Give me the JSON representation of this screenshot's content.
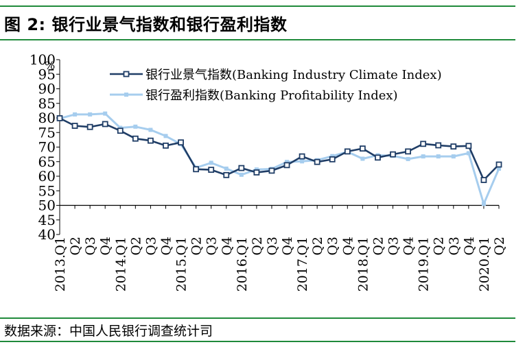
{
  "header": {
    "title": "图 2:  银行业景气指数和银行盈利指数"
  },
  "footer": {
    "source": "数据来源：中国人民银行调查统计司"
  },
  "chart_data": {
    "type": "line",
    "unit_label": "%",
    "ylim": [
      40,
      100
    ],
    "yticks": [
      40,
      45,
      50,
      55,
      60,
      65,
      70,
      75,
      80,
      85,
      90,
      95,
      100
    ],
    "grid": false,
    "legend_position": "top",
    "x_quarter_labels": [
      "Q1",
      "Q2",
      "Q3",
      "Q4",
      "Q1",
      "Q2",
      "Q3",
      "Q4",
      "Q1",
      "Q2",
      "Q3",
      "Q4",
      "Q1",
      "Q2",
      "Q3",
      "Q4",
      "Q1",
      "Q2",
      "Q3",
      "Q4",
      "Q1",
      "Q2",
      "Q3",
      "Q4",
      "Q1",
      "Q2",
      "Q3",
      "Q4",
      "Q1",
      "Q2"
    ],
    "year_labels": [
      {
        "year": "2013.",
        "index": 0
      },
      {
        "year": "2014.",
        "index": 4
      },
      {
        "year": "2015.",
        "index": 8
      },
      {
        "year": "2016.",
        "index": 12
      },
      {
        "year": "2017.",
        "index": 16
      },
      {
        "year": "2018.",
        "index": 20
      },
      {
        "year": "2019.",
        "index": 24
      },
      {
        "year": "2020.",
        "index": 28
      }
    ],
    "series": [
      {
        "name": "银行业景气指数(Banking Industry Climate Index)",
        "color": "#1f3d66",
        "values": [
          79.9,
          77.3,
          76.9,
          77.9,
          75.6,
          72.9,
          72.2,
          70.5,
          71.6,
          62.4,
          62.2,
          60.4,
          62.8,
          61.3,
          61.9,
          63.8,
          66.8,
          64.9,
          65.8,
          68.5,
          69.5,
          66.4,
          67.5,
          68.5,
          71.1,
          70.6,
          70.2,
          70.4,
          58.7,
          64.0
        ]
      },
      {
        "name": "银行盈利指数(Banking Profitability Index)",
        "color": "#a6cdee",
        "values": [
          79.8,
          81.2,
          81.2,
          81.5,
          76.6,
          77.0,
          75.9,
          73.8,
          71.0,
          62.9,
          64.6,
          62.6,
          60.5,
          62.3,
          62.5,
          64.9,
          65.1,
          65.5,
          66.9,
          68.4,
          66.0,
          67.2,
          67.0,
          65.9,
          66.8,
          66.8,
          66.8,
          67.9,
          50.5,
          62.6
        ]
      }
    ]
  }
}
